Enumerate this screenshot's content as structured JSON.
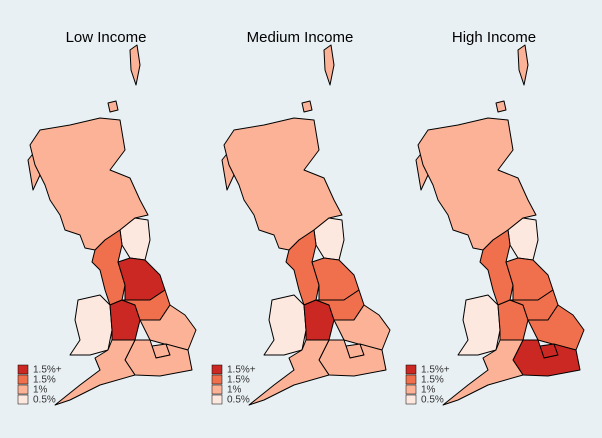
{
  "legend": [
    {
      "label": "1.5%+",
      "color": "#cb2823"
    },
    {
      "label": "1.5%",
      "color": "#f0704d"
    },
    {
      "label": "1%",
      "color": "#fbb297"
    },
    {
      "label": "0.5%",
      "color": "#fde8df"
    }
  ],
  "maps": [
    {
      "title": "Low Income",
      "region_colors": [
        "#fbb297",
        "#fde8df",
        "#f0704d",
        "#cb2823",
        "#fde8df",
        "#cb2823",
        "#f0704d",
        "#fbb297",
        "#fbb297",
        "#fbb297",
        "#fbb297"
      ]
    },
    {
      "title": "Medium Income",
      "region_colors": [
        "#fbb297",
        "#fde8df",
        "#f0704d",
        "#f0704d",
        "#fde8df",
        "#cb2823",
        "#f0704d",
        "#fbb297",
        "#fbb297",
        "#fbb297",
        "#fbb297"
      ]
    },
    {
      "title": "High Income",
      "region_colors": [
        "#fbb297",
        "#fde8df",
        "#f0704d",
        "#f0704d",
        "#fde8df",
        "#f0704d",
        "#f0704d",
        "#f0704d",
        "#cb2823",
        "#cb2823",
        "#fbb297"
      ]
    }
  ]
}
